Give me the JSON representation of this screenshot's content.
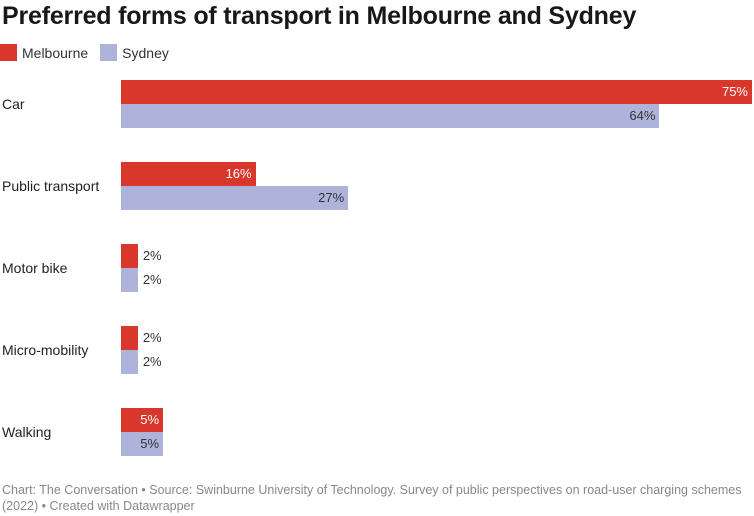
{
  "chart_data": {
    "type": "bar",
    "orientation": "horizontal",
    "title": "Preferred forms of transport in Melbourne and Sydney",
    "categories": [
      "Car",
      "Public transport",
      "Motor bike",
      "Micro-mobility",
      "Walking"
    ],
    "series": [
      {
        "name": "Melbourne",
        "color": "#d9372b",
        "values": [
          75,
          16,
          2,
          2,
          5
        ]
      },
      {
        "name": "Sydney",
        "color": "#aeb3db",
        "values": [
          64,
          27,
          2,
          2,
          5
        ]
      }
    ],
    "value_suffix": "%",
    "xlim": [
      0,
      75
    ],
    "legend": "top-left",
    "grid": false
  },
  "footer": "Chart: The Conversation • Source: Swinburne University of Technology. Survey of public perspectives on road-user charging schemes (2022) • Created with Datawrapper"
}
